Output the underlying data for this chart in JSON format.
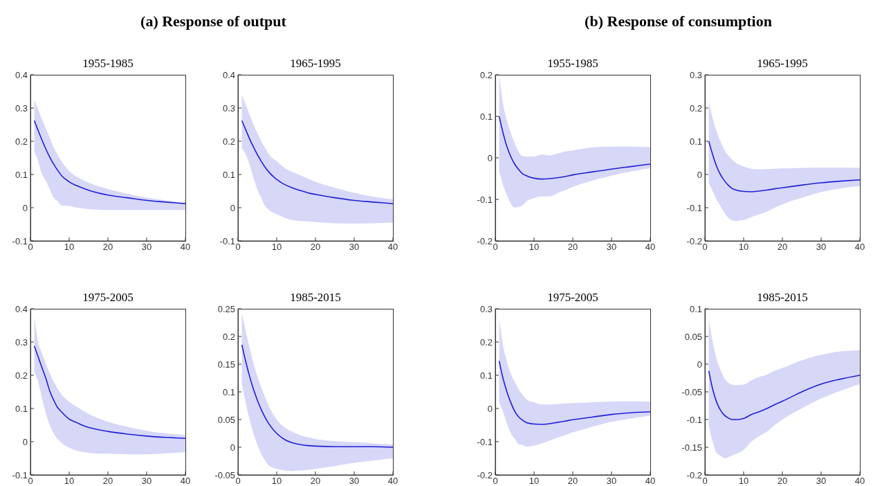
{
  "chart_data": [
    {
      "type": "line",
      "title": "1955-1985",
      "annotations": [
        "(a) Response of output"
      ],
      "x": [
        1,
        2,
        3,
        4,
        5,
        6,
        7,
        8,
        10,
        12,
        14,
        16,
        18,
        20,
        25,
        30,
        35,
        40
      ],
      "xlim": [
        0,
        40
      ],
      "xticks": [
        0,
        10,
        20,
        30,
        40
      ],
      "ylim": [
        -0.1,
        0.4
      ],
      "yticks": [
        -0.1,
        0,
        0.1,
        0.2,
        0.3,
        0.4
      ],
      "series": [
        {
          "color": "#1f1fd6",
          "values": [
            0.262,
            0.232,
            0.203,
            0.176,
            0.152,
            0.131,
            0.113,
            0.097,
            0.078,
            0.066,
            0.057,
            0.049,
            0.043,
            0.038,
            0.03,
            0.022,
            0.017,
            0.012
          ],
          "upper": [
            0.325,
            0.295,
            0.265,
            0.238,
            0.21,
            0.182,
            0.16,
            0.14,
            0.11,
            0.093,
            0.08,
            0.071,
            0.063,
            0.056,
            0.042,
            0.03,
            0.022,
            0.016
          ],
          "lower": [
            0.17,
            0.14,
            0.1,
            0.08,
            0.055,
            0.03,
            0.02,
            0.007,
            0.005,
            0.0,
            -0.003,
            -0.005,
            -0.006,
            -0.007,
            -0.007,
            -0.007,
            -0.007,
            -0.006
          ]
        }
      ]
    },
    {
      "type": "line",
      "title": "1965-1995",
      "x": [
        1,
        2,
        3,
        4,
        5,
        6,
        7,
        8,
        10,
        12,
        14,
        16,
        18,
        20,
        25,
        30,
        35,
        40
      ],
      "xlim": [
        0,
        40
      ],
      "xticks": [
        0,
        10,
        20,
        30,
        40
      ],
      "ylim": [
        -0.1,
        0.4
      ],
      "yticks": [
        -0.1,
        0,
        0.1,
        0.2,
        0.3,
        0.4
      ],
      "series": [
        {
          "color": "#1f1fd6",
          "values": [
            0.262,
            0.235,
            0.207,
            0.183,
            0.16,
            0.14,
            0.122,
            0.107,
            0.085,
            0.07,
            0.06,
            0.052,
            0.045,
            0.04,
            0.03,
            0.022,
            0.017,
            0.012
          ],
          "upper": [
            0.34,
            0.31,
            0.28,
            0.25,
            0.225,
            0.2,
            0.18,
            0.16,
            0.14,
            0.12,
            0.108,
            0.098,
            0.088,
            0.078,
            0.06,
            0.045,
            0.033,
            0.025
          ],
          "lower": [
            0.18,
            0.16,
            0.13,
            0.09,
            0.055,
            0.03,
            0.005,
            -0.007,
            -0.02,
            -0.03,
            -0.037,
            -0.04,
            -0.041,
            -0.043,
            -0.047,
            -0.048,
            -0.047,
            -0.045
          ]
        }
      ]
    },
    {
      "type": "line",
      "title": "1975-2005",
      "x": [
        1,
        2,
        3,
        4,
        5,
        6,
        7,
        8,
        10,
        12,
        14,
        16,
        18,
        20,
        25,
        30,
        35,
        40
      ],
      "xlim": [
        0,
        40
      ],
      "xticks": [
        0,
        10,
        20,
        30,
        40
      ],
      "ylim": [
        -0.1,
        0.4
      ],
      "yticks": [
        -0.1,
        0,
        0.1,
        0.2,
        0.3,
        0.4
      ],
      "series": [
        {
          "color": "#1f1fd6",
          "values": [
            0.288,
            0.255,
            0.222,
            0.19,
            0.152,
            0.125,
            0.103,
            0.09,
            0.068,
            0.057,
            0.047,
            0.04,
            0.035,
            0.031,
            0.023,
            0.017,
            0.013,
            0.01
          ],
          "upper": [
            0.375,
            0.3,
            0.265,
            0.235,
            0.205,
            0.18,
            0.16,
            0.142,
            0.12,
            0.105,
            0.09,
            0.078,
            0.068,
            0.06,
            0.045,
            0.033,
            0.025,
            0.02
          ],
          "lower": [
            0.21,
            0.18,
            0.13,
            0.085,
            0.05,
            0.025,
            0.008,
            -0.003,
            -0.018,
            -0.027,
            -0.032,
            -0.035,
            -0.036,
            -0.036,
            -0.038,
            -0.038,
            -0.035,
            -0.032
          ]
        }
      ]
    },
    {
      "type": "line",
      "title": "1985-2015",
      "x": [
        1,
        2,
        3,
        4,
        5,
        6,
        7,
        8,
        10,
        12,
        14,
        16,
        18,
        20,
        25,
        30,
        35,
        40
      ],
      "xlim": [
        0,
        40
      ],
      "xticks": [
        0,
        10,
        20,
        30,
        40
      ],
      "ylim": [
        -0.05,
        0.25
      ],
      "yticks": [
        -0.05,
        0,
        0.05,
        0.1,
        0.15,
        0.2,
        0.25
      ],
      "series": [
        {
          "color": "#1f1fd6",
          "values": [
            0.185,
            0.155,
            0.128,
            0.105,
            0.085,
            0.068,
            0.054,
            0.042,
            0.025,
            0.014,
            0.008,
            0.005,
            0.003,
            0.002,
            0.001,
            0.001,
            0.001,
            0.0
          ],
          "upper": [
            0.243,
            0.21,
            0.18,
            0.152,
            0.128,
            0.108,
            0.09,
            0.074,
            0.05,
            0.036,
            0.028,
            0.022,
            0.018,
            0.015,
            0.011,
            0.009,
            0.007,
            0.005
          ],
          "lower": [
            0.115,
            0.08,
            0.05,
            0.025,
            0.005,
            -0.012,
            -0.024,
            -0.033,
            -0.039,
            -0.042,
            -0.043,
            -0.042,
            -0.041,
            -0.039,
            -0.034,
            -0.028,
            -0.024,
            -0.02
          ]
        }
      ]
    },
    {
      "type": "line",
      "title": "1955-1985",
      "annotations": [
        "(b) Response of consumption"
      ],
      "x": [
        1,
        2,
        3,
        4,
        5,
        6,
        7,
        8,
        10,
        12,
        14,
        16,
        18,
        20,
        25,
        30,
        35,
        40
      ],
      "xlim": [
        0,
        40
      ],
      "xticks": [
        0,
        10,
        20,
        30,
        40
      ],
      "ylim": [
        -0.2,
        0.2
      ],
      "yticks": [
        -0.2,
        -0.1,
        0,
        0.1,
        0.2
      ],
      "series": [
        {
          "color": "#1f1fd6",
          "values": [
            0.1,
            0.06,
            0.027,
            0.003,
            -0.015,
            -0.028,
            -0.038,
            -0.043,
            -0.049,
            -0.051,
            -0.05,
            -0.048,
            -0.045,
            -0.041,
            -0.034,
            -0.027,
            -0.021,
            -0.015
          ],
          "upper": [
            0.2,
            0.13,
            0.09,
            0.06,
            0.035,
            0.015,
            0.004,
            0.003,
            0.003,
            0.008,
            0.006,
            0.01,
            0.015,
            0.018,
            0.025,
            0.027,
            0.027,
            0.026
          ],
          "lower": [
            -0.033,
            -0.065,
            -0.09,
            -0.11,
            -0.12,
            -0.118,
            -0.115,
            -0.105,
            -0.097,
            -0.093,
            -0.093,
            -0.085,
            -0.078,
            -0.07,
            -0.055,
            -0.043,
            -0.033,
            -0.025
          ]
        }
      ]
    },
    {
      "type": "line",
      "title": "1965-1995",
      "x": [
        1,
        2,
        3,
        4,
        5,
        6,
        7,
        8,
        10,
        12,
        14,
        16,
        18,
        20,
        25,
        30,
        35,
        40
      ],
      "xlim": [
        0,
        40
      ],
      "xticks": [
        0,
        10,
        20,
        30,
        40
      ],
      "ylim": [
        -0.2,
        0.3
      ],
      "yticks": [
        -0.2,
        -0.1,
        0,
        0.1,
        0.2,
        0.3
      ],
      "series": [
        {
          "color": "#1f1fd6",
          "values": [
            0.1,
            0.06,
            0.025,
            0.0,
            -0.018,
            -0.032,
            -0.042,
            -0.047,
            -0.051,
            -0.052,
            -0.05,
            -0.047,
            -0.043,
            -0.04,
            -0.032,
            -0.025,
            -0.02,
            -0.016
          ],
          "upper": [
            0.22,
            0.17,
            0.13,
            0.1,
            0.075,
            0.058,
            0.045,
            0.035,
            0.024,
            0.017,
            0.015,
            0.016,
            0.017,
            0.018,
            0.02,
            0.021,
            0.021,
            0.02
          ],
          "lower": [
            -0.025,
            -0.05,
            -0.075,
            -0.095,
            -0.115,
            -0.13,
            -0.138,
            -0.14,
            -0.137,
            -0.128,
            -0.12,
            -0.112,
            -0.1,
            -0.09,
            -0.07,
            -0.053,
            -0.042,
            -0.035
          ]
        }
      ]
    },
    {
      "type": "line",
      "title": "1975-2005",
      "x": [
        1,
        2,
        3,
        4,
        5,
        6,
        7,
        8,
        10,
        12,
        14,
        16,
        18,
        20,
        25,
        30,
        35,
        40
      ],
      "xlim": [
        0,
        40
      ],
      "xticks": [
        0,
        10,
        20,
        30,
        40
      ],
      "ylim": [
        -0.2,
        0.3
      ],
      "yticks": [
        -0.2,
        -0.1,
        0,
        0.1,
        0.2,
        0.3
      ],
      "series": [
        {
          "color": "#1f1fd6",
          "values": [
            0.143,
            0.09,
            0.05,
            0.018,
            -0.008,
            -0.025,
            -0.035,
            -0.042,
            -0.047,
            -0.048,
            -0.046,
            -0.042,
            -0.038,
            -0.034,
            -0.026,
            -0.018,
            -0.013,
            -0.01
          ],
          "upper": [
            0.27,
            0.19,
            0.14,
            0.105,
            0.08,
            0.058,
            0.042,
            0.028,
            0.018,
            0.012,
            0.012,
            0.013,
            0.015,
            0.016,
            0.019,
            0.021,
            0.022,
            0.021
          ],
          "lower": [
            0.018,
            -0.01,
            -0.045,
            -0.075,
            -0.09,
            -0.108,
            -0.11,
            -0.115,
            -0.112,
            -0.105,
            -0.097,
            -0.088,
            -0.08,
            -0.072,
            -0.055,
            -0.04,
            -0.03,
            -0.022
          ]
        }
      ]
    },
    {
      "type": "line",
      "title": "1985-2015",
      "x": [
        1,
        2,
        3,
        4,
        5,
        6,
        7,
        8,
        10,
        12,
        14,
        16,
        18,
        20,
        25,
        30,
        35,
        40
      ],
      "xlim": [
        0,
        40
      ],
      "xticks": [
        0,
        10,
        20,
        30,
        40
      ],
      "ylim": [
        -0.2,
        0.1
      ],
      "yticks": [
        -0.2,
        -0.15,
        -0.1,
        -0.05,
        0,
        0.05,
        0.1
      ],
      "series": [
        {
          "color": "#1f1fd6",
          "values": [
            -0.012,
            -0.045,
            -0.068,
            -0.083,
            -0.092,
            -0.097,
            -0.1,
            -0.1,
            -0.098,
            -0.091,
            -0.086,
            -0.08,
            -0.073,
            -0.067,
            -0.05,
            -0.036,
            -0.027,
            -0.02
          ],
          "upper": [
            0.082,
            0.04,
            0.01,
            -0.01,
            -0.025,
            -0.033,
            -0.037,
            -0.038,
            -0.037,
            -0.029,
            -0.023,
            -0.019,
            -0.012,
            -0.007,
            0.007,
            0.017,
            0.023,
            0.025
          ],
          "lower": [
            -0.112,
            -0.14,
            -0.16,
            -0.165,
            -0.17,
            -0.168,
            -0.165,
            -0.162,
            -0.155,
            -0.14,
            -0.13,
            -0.122,
            -0.11,
            -0.1,
            -0.08,
            -0.062,
            -0.048,
            -0.036
          ]
        }
      ]
    }
  ]
}
